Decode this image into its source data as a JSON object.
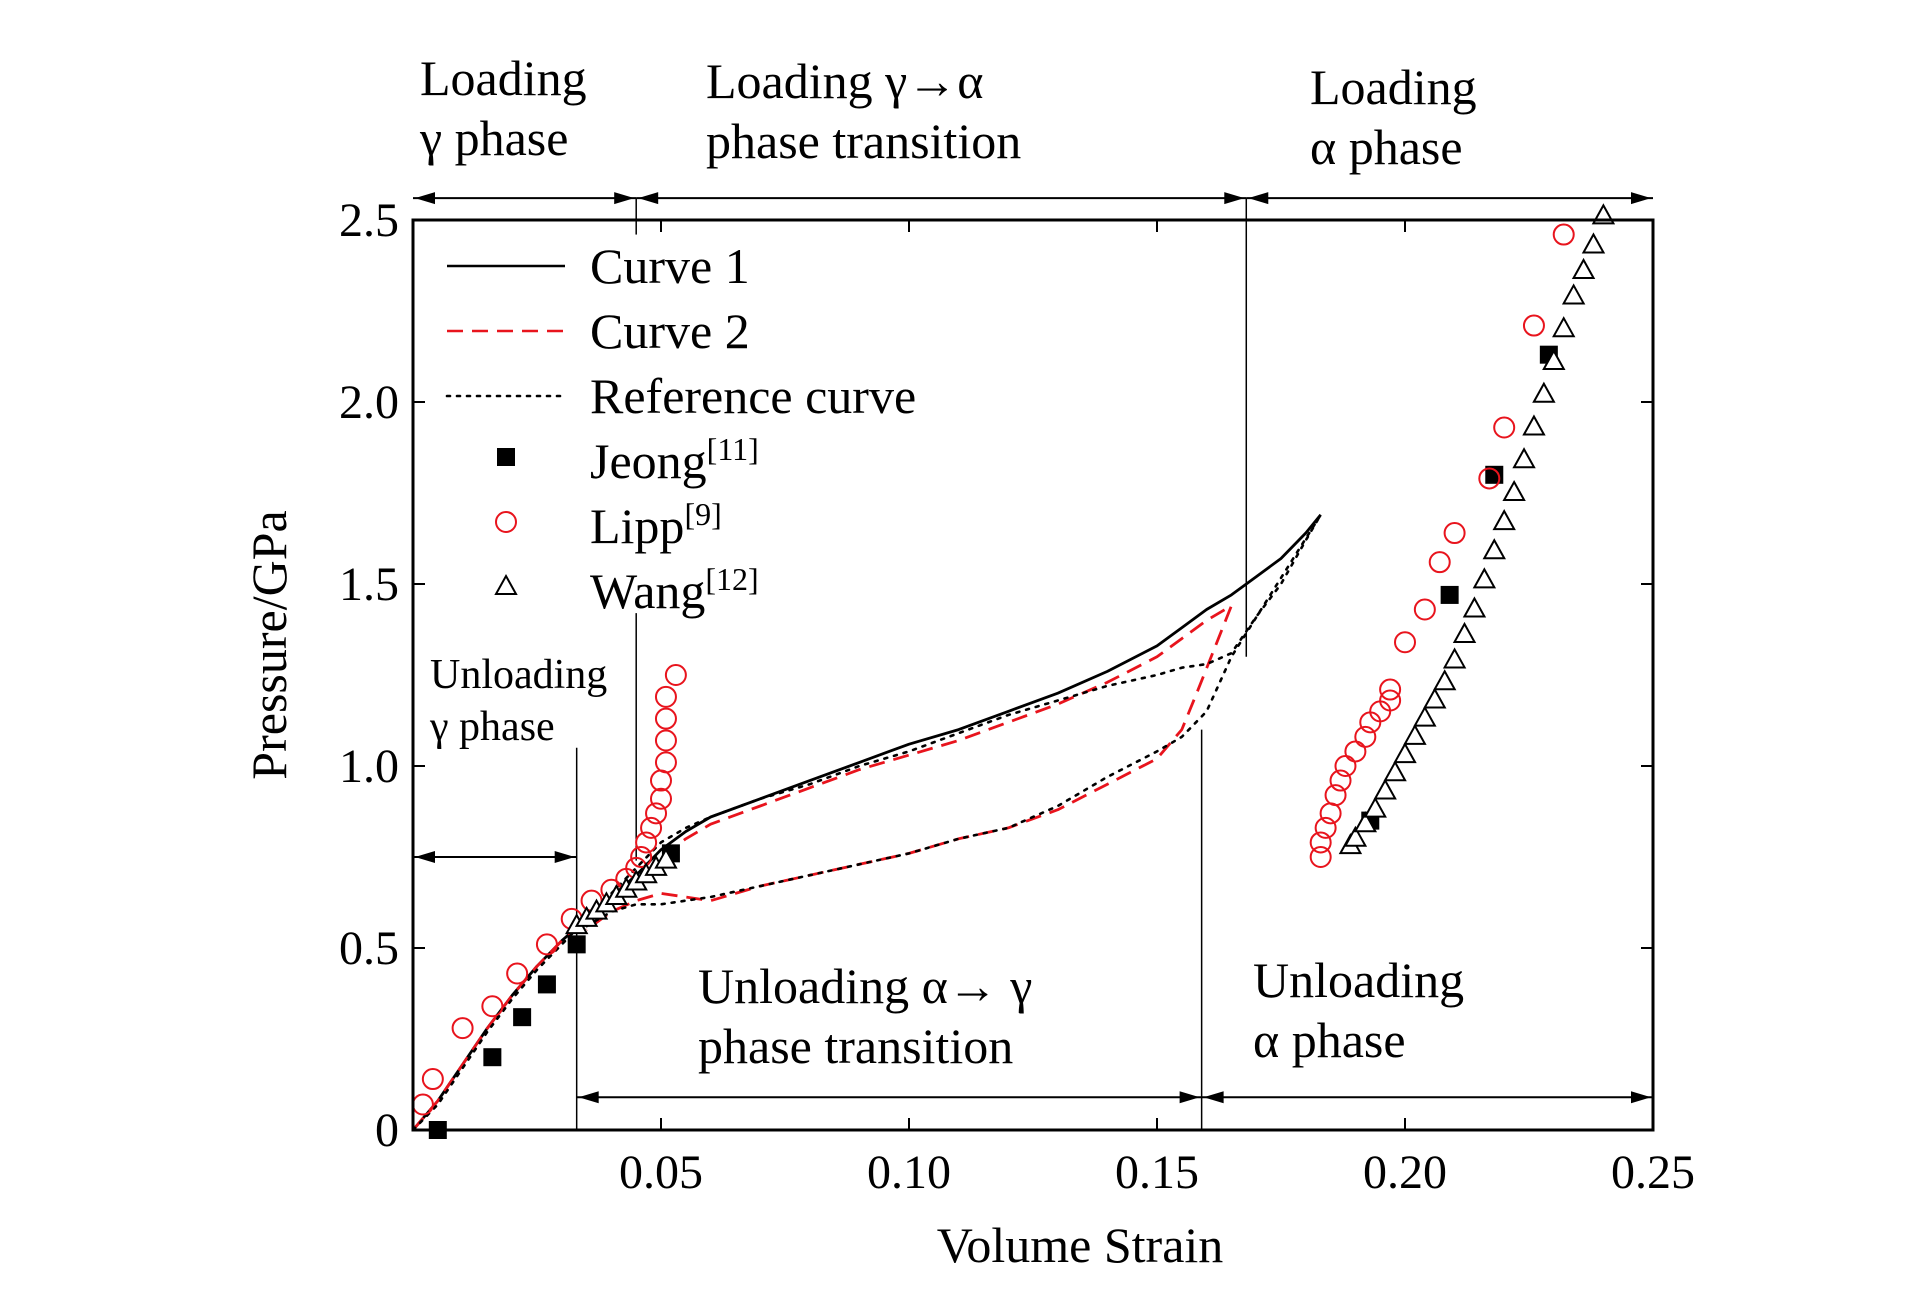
{
  "colors": {
    "axis": "#000000",
    "curve1": "#000000",
    "curve2": "#e8141d",
    "reference": "#000000",
    "jeong": "#000000",
    "lipp": "#e8141d",
    "wang": "#000000"
  },
  "chart_data": {
    "type": "line",
    "xlabel": "Volume Strain",
    "ylabel": "Pressure/GPa",
    "xlim": [
      0,
      0.25
    ],
    "ylim": [
      0,
      2.5
    ],
    "x_ticks": [
      {
        "value": 0.05,
        "label": "0.05"
      },
      {
        "value": 0.1,
        "label": "0.10"
      },
      {
        "value": 0.15,
        "label": "0.15"
      },
      {
        "value": 0.2,
        "label": "0.20"
      },
      {
        "value": 0.25,
        "label": "0.25"
      }
    ],
    "y_ticks": [
      {
        "value": 0,
        "label": "0"
      },
      {
        "value": 0.5,
        "label": "0.5"
      },
      {
        "value": 1.0,
        "label": "1.0"
      },
      {
        "value": 1.5,
        "label": "1.5"
      },
      {
        "value": 2.0,
        "label": "2.0"
      },
      {
        "value": 2.5,
        "label": "2.5"
      }
    ],
    "grid": false,
    "legend_position": "top-left",
    "legend": [
      {
        "key": "curve1",
        "label": "Curve 1",
        "sup": "",
        "kind": "solid-line"
      },
      {
        "key": "curve2",
        "label": "Curve 2",
        "sup": "",
        "kind": "dashed-line"
      },
      {
        "key": "reference",
        "label": "Reference curve",
        "sup": "",
        "kind": "dotted-line"
      },
      {
        "key": "jeong",
        "label": "Jeong",
        "sup": "[11]",
        "kind": "filled-square"
      },
      {
        "key": "lipp",
        "label": "Lipp",
        "sup": "[9]",
        "kind": "open-circle"
      },
      {
        "key": "wang",
        "label": "Wang",
        "sup": "[12]",
        "kind": "open-triangle"
      }
    ],
    "series": [
      {
        "name": "Curve 1",
        "key": "curve1",
        "style": "solid",
        "x": [
          0,
          0.005,
          0.01,
          0.015,
          0.02,
          0.025,
          0.03,
          0.035,
          0.04,
          0.045,
          0.05,
          0.055,
          0.06,
          0.07,
          0.08,
          0.09,
          0.1,
          0.11,
          0.12,
          0.13,
          0.14,
          0.15,
          0.155,
          0.16,
          0.165,
          0.17,
          0.175,
          0.18,
          0.183
        ],
        "y": [
          0,
          0.08,
          0.18,
          0.28,
          0.37,
          0.45,
          0.52,
          0.58,
          0.64,
          0.7,
          0.77,
          0.82,
          0.86,
          0.91,
          0.96,
          1.01,
          1.06,
          1.1,
          1.15,
          1.2,
          1.26,
          1.33,
          1.38,
          1.43,
          1.47,
          1.52,
          1.57,
          1.64,
          1.69
        ]
      },
      {
        "name": "Curve 2",
        "key": "curve2",
        "style": "dashed",
        "x": [
          0,
          0.005,
          0.01,
          0.015,
          0.02,
          0.025,
          0.03,
          0.035,
          0.04,
          0.045,
          0.05,
          0.055,
          0.06,
          0.07,
          0.08,
          0.09,
          0.1,
          0.11,
          0.12,
          0.13,
          0.14,
          0.15,
          0.155,
          0.16,
          0.165,
          0.158,
          0.155,
          0.15,
          0.14,
          0.13,
          0.12,
          0.11,
          0.1,
          0.09,
          0.08,
          0.07,
          0.06,
          0.05,
          0.045,
          0.04,
          0.035
        ],
        "y": [
          0,
          0.08,
          0.18,
          0.28,
          0.37,
          0.45,
          0.52,
          0.58,
          0.62,
          0.68,
          0.75,
          0.8,
          0.84,
          0.89,
          0.94,
          0.99,
          1.03,
          1.07,
          1.12,
          1.17,
          1.23,
          1.3,
          1.35,
          1.4,
          1.44,
          1.2,
          1.1,
          1.02,
          0.95,
          0.88,
          0.83,
          0.8,
          0.76,
          0.73,
          0.7,
          0.67,
          0.63,
          0.65,
          0.63,
          0.6,
          0.55
        ]
      },
      {
        "name": "Reference curve",
        "key": "reference",
        "style": "dotted",
        "x": [
          0,
          0.005,
          0.01,
          0.015,
          0.02,
          0.025,
          0.03,
          0.035,
          0.04,
          0.045,
          0.05,
          0.055,
          0.06,
          0.07,
          0.08,
          0.09,
          0.1,
          0.11,
          0.12,
          0.13,
          0.14,
          0.15,
          0.155,
          0.16,
          0.165,
          0.17,
          0.175,
          0.18,
          0.183,
          0.165,
          0.16,
          0.155,
          0.15,
          0.14,
          0.13,
          0.12,
          0.11,
          0.1,
          0.09,
          0.08,
          0.07,
          0.06,
          0.05,
          0.045,
          0.04,
          0.035
        ],
        "y": [
          0,
          0.07,
          0.17,
          0.27,
          0.36,
          0.44,
          0.51,
          0.58,
          0.65,
          0.72,
          0.79,
          0.83,
          0.86,
          0.91,
          0.95,
          1.0,
          1.04,
          1.09,
          1.14,
          1.18,
          1.22,
          1.25,
          1.27,
          1.28,
          1.31,
          1.41,
          1.5,
          1.62,
          1.69,
          1.3,
          1.15,
          1.08,
          1.04,
          0.97,
          0.89,
          0.83,
          0.8,
          0.76,
          0.73,
          0.7,
          0.67,
          0.64,
          0.62,
          0.62,
          0.6,
          0.56
        ]
      },
      {
        "name": "Jeong[11]",
        "key": "jeong",
        "style": "square",
        "x": [
          0.005,
          0.016,
          0.022,
          0.027,
          0.033,
          0.052,
          0.193,
          0.209,
          0.218,
          0.229
        ],
        "y": [
          0,
          0.2,
          0.31,
          0.4,
          0.51,
          0.76,
          0.85,
          1.47,
          1.8,
          2.13
        ]
      },
      {
        "name": "Lipp[9]",
        "key": "lipp",
        "style": "circle",
        "x": [
          0.002,
          0.004,
          0.01,
          0.016,
          0.021,
          0.027,
          0.032,
          0.036,
          0.04,
          0.043,
          0.045,
          0.046,
          0.047,
          0.048,
          0.049,
          0.05,
          0.05,
          0.051,
          0.051,
          0.051,
          0.051,
          0.053,
          0.183,
          0.183,
          0.184,
          0.185,
          0.186,
          0.187,
          0.188,
          0.19,
          0.192,
          0.193,
          0.195,
          0.197,
          0.197,
          0.2,
          0.204,
          0.207,
          0.21,
          0.217,
          0.22,
          0.226,
          0.232
        ],
        "y": [
          0.07,
          0.14,
          0.28,
          0.34,
          0.43,
          0.51,
          0.58,
          0.63,
          0.66,
          0.69,
          0.72,
          0.75,
          0.79,
          0.83,
          0.87,
          0.91,
          0.96,
          1.01,
          1.07,
          1.13,
          1.19,
          1.25,
          0.75,
          0.79,
          0.83,
          0.87,
          0.92,
          0.96,
          1.0,
          1.04,
          1.08,
          1.12,
          1.15,
          1.18,
          1.21,
          1.34,
          1.43,
          1.56,
          1.64,
          1.79,
          1.93,
          2.21,
          2.46
        ]
      },
      {
        "name": "Wang[12]",
        "key": "wang",
        "style": "triangle",
        "x": [
          0.033,
          0.035,
          0.037,
          0.039,
          0.041,
          0.043,
          0.045,
          0.047,
          0.049,
          0.051,
          0.189,
          0.19,
          0.192,
          0.194,
          0.196,
          0.198,
          0.2,
          0.202,
          0.204,
          0.206,
          0.208,
          0.21,
          0.212,
          0.214,
          0.216,
          0.218,
          0.22,
          0.222,
          0.224,
          0.226,
          0.228,
          0.23,
          0.232,
          0.234,
          0.236,
          0.238,
          0.24
        ],
        "y": [
          0.56,
          0.58,
          0.6,
          0.62,
          0.64,
          0.66,
          0.68,
          0.7,
          0.72,
          0.74,
          0.78,
          0.8,
          0.84,
          0.88,
          0.93,
          0.98,
          1.03,
          1.08,
          1.13,
          1.18,
          1.23,
          1.29,
          1.36,
          1.43,
          1.51,
          1.59,
          1.67,
          1.75,
          1.84,
          1.93,
          2.02,
          2.11,
          2.2,
          2.29,
          2.36,
          2.43,
          2.51
        ]
      }
    ],
    "annotations": [
      {
        "key": "loading-gamma-phase",
        "lines": [
          "Loading",
          "γ phase"
        ],
        "ranges": [
          {
            "x0": 0,
            "x1": 0.045,
            "y": 2.56
          }
        ]
      },
      {
        "key": "loading-gamma-alpha-transition",
        "lines": [
          "Loading γ→α",
          "phase transition"
        ],
        "ranges": [
          {
            "x0": 0.045,
            "x1": 0.168,
            "y": 2.56
          }
        ]
      },
      {
        "key": "loading-alpha-phase",
        "lines": [
          "Loading",
          "α phase"
        ],
        "ranges": [
          {
            "x0": 0.168,
            "x1": 0.25,
            "y": 2.56
          }
        ]
      },
      {
        "key": "unloading-gamma-phase",
        "lines": [
          "Unloading",
          "γ phase"
        ],
        "ranges": [
          {
            "x0": 0,
            "x1": 0.033,
            "y": 0.75
          }
        ]
      },
      {
        "key": "unloading-alpha-gamma-transition",
        "lines": [
          "Unloading α→ γ",
          "phase transition"
        ],
        "ranges": [
          {
            "x0": 0.033,
            "x1": 0.159,
            "y": 0.09
          }
        ]
      },
      {
        "key": "unloading-alpha-phase",
        "lines": [
          "Unloading",
          "α phase"
        ],
        "ranges": [
          {
            "x0": 0.159,
            "x1": 0.25,
            "y": 0.09
          }
        ]
      }
    ],
    "boundaries": [
      {
        "x": 0.045,
        "y_from": 2.56,
        "y_to": 2.46
      },
      {
        "x": 0.168,
        "y_from": 2.56,
        "y_to": 1.3
      },
      {
        "x": 0.033,
        "y_from": 1.05,
        "y_to": 0.0
      },
      {
        "x": 0.159,
        "y_from": 1.1,
        "y_to": 0.0
      },
      {
        "x": 0.045,
        "y_from": 1.42,
        "y_to": 0.74
      }
    ]
  }
}
